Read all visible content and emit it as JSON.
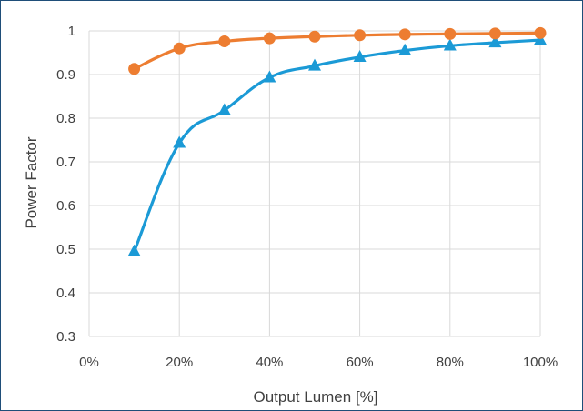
{
  "chart_data": {
    "type": "line",
    "title": "",
    "xlabel": "Output Lumen [%]",
    "ylabel": "Power Factor",
    "x": [
      10,
      20,
      30,
      40,
      50,
      60,
      70,
      80,
      90,
      100
    ],
    "xlim": [
      0,
      100
    ],
    "ylim": [
      0.3,
      1.0
    ],
    "x_ticks": [
      0,
      20,
      40,
      60,
      80,
      100
    ],
    "x_tick_labels": [
      "0%",
      "20%",
      "40%",
      "60%",
      "80%",
      "100%"
    ],
    "y_ticks": [
      0.3,
      0.4,
      0.5,
      0.6,
      0.7,
      0.8,
      0.9,
      1.0
    ],
    "y_tick_labels": [
      "0.3",
      "0.4",
      "0.5",
      "0.6",
      "0.7",
      "0.8",
      "0.9",
      "1"
    ],
    "grid": true,
    "legend": "none",
    "series": [
      {
        "marker": "circle",
        "color": "#ed7d31",
        "values": [
          0.913,
          0.96,
          0.976,
          0.983,
          0.987,
          0.99,
          0.992,
          0.993,
          0.994,
          0.995
        ]
      },
      {
        "marker": "triangle",
        "color": "#1b9ad6",
        "values": [
          0.495,
          0.743,
          0.818,
          0.893,
          0.92,
          0.94,
          0.955,
          0.966,
          0.973,
          0.979
        ]
      }
    ]
  }
}
